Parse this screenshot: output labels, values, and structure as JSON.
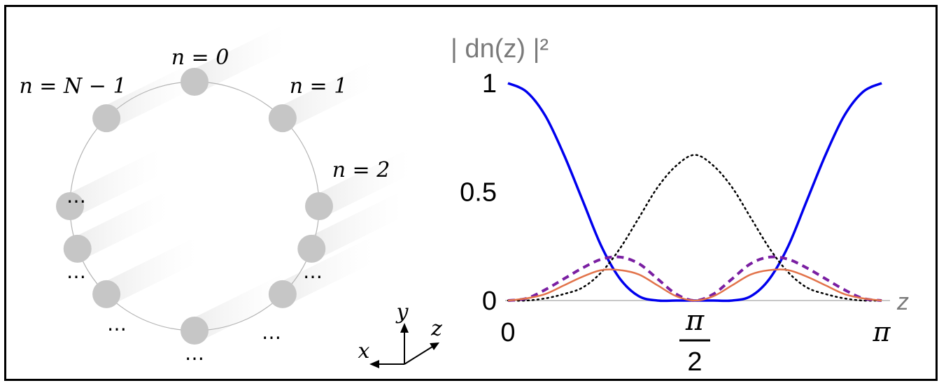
{
  "left_panel": {
    "labels": {
      "n0": "n = 0",
      "n1": "n = 1",
      "n2": "n = 2",
      "nN1": "n = N − 1",
      "dots": "⋯"
    },
    "axes": {
      "x": "x",
      "y": "y",
      "z": "z"
    }
  },
  "chart_data": {
    "type": "line",
    "ylabel": "| dn(z) |²",
    "xlabel": "z",
    "xlim": [
      0,
      3.14159
    ],
    "ylim": [
      0,
      1
    ],
    "xticks": [
      {
        "value": 0,
        "label": "0"
      },
      {
        "value": 1.5708,
        "label": "π/2"
      },
      {
        "value": 3.14159,
        "label": "π"
      }
    ],
    "yticks": [
      {
        "value": 0,
        "label": "0"
      },
      {
        "value": 0.5,
        "label": "0.5"
      },
      {
        "value": 1,
        "label": "1"
      }
    ],
    "grid": false,
    "series": [
      {
        "color": "#0000ee",
        "style": "solid",
        "x": [
          0,
          0.157,
          0.314,
          0.471,
          0.628,
          0.785,
          0.942,
          1.1,
          1.257,
          1.414,
          1.571,
          1.728,
          1.885,
          2.042,
          2.199,
          2.356,
          2.513,
          2.67,
          2.827,
          2.985,
          3.142
        ],
        "y": [
          1.0,
          0.96,
          0.85,
          0.67,
          0.46,
          0.25,
          0.1,
          0.02,
          0.0,
          0.0,
          0.0,
          0.0,
          0.0,
          0.02,
          0.1,
          0.25,
          0.46,
          0.67,
          0.85,
          0.96,
          1.0
        ]
      },
      {
        "color": "#000000",
        "style": "dotted",
        "x": [
          0,
          0.157,
          0.314,
          0.471,
          0.628,
          0.785,
          0.942,
          1.1,
          1.257,
          1.414,
          1.571,
          1.728,
          1.885,
          2.042,
          2.199,
          2.356,
          2.513,
          2.67,
          2.827,
          2.985,
          3.142
        ],
        "y": [
          0.0,
          0.0,
          0.01,
          0.03,
          0.06,
          0.13,
          0.24,
          0.38,
          0.52,
          0.62,
          0.67,
          0.62,
          0.52,
          0.38,
          0.24,
          0.13,
          0.06,
          0.03,
          0.01,
          0.0,
          0.0
        ]
      },
      {
        "color": "#7a1fa2",
        "style": "dashed",
        "x": [
          0,
          0.157,
          0.314,
          0.471,
          0.628,
          0.785,
          0.942,
          1.1,
          1.257,
          1.414,
          1.571,
          1.728,
          1.885,
          2.042,
          2.199,
          2.356,
          2.513,
          2.67,
          2.827,
          2.985,
          3.142
        ],
        "y": [
          0.0,
          0.01,
          0.05,
          0.1,
          0.15,
          0.19,
          0.2,
          0.17,
          0.1,
          0.03,
          0.0,
          0.03,
          0.1,
          0.17,
          0.2,
          0.19,
          0.15,
          0.1,
          0.05,
          0.01,
          0.0
        ]
      },
      {
        "color": "#e2734a",
        "style": "solid",
        "x": [
          0,
          0.157,
          0.314,
          0.471,
          0.628,
          0.785,
          0.942,
          1.1,
          1.257,
          1.414,
          1.571,
          1.728,
          1.885,
          2.042,
          2.199,
          2.356,
          2.513,
          2.67,
          2.827,
          2.985,
          3.142
        ],
        "y": [
          0.0,
          0.01,
          0.03,
          0.07,
          0.11,
          0.14,
          0.14,
          0.12,
          0.07,
          0.02,
          0.0,
          0.02,
          0.07,
          0.12,
          0.14,
          0.14,
          0.11,
          0.07,
          0.03,
          0.01,
          0.0
        ]
      }
    ]
  }
}
